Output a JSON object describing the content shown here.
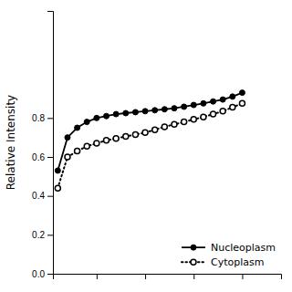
{
  "chart_data": {
    "type": "line",
    "y_label": "Relative Intensity",
    "x": [
      1,
      2,
      3,
      4,
      5,
      6,
      7,
      8,
      9,
      10,
      11,
      12,
      13,
      14,
      15,
      16,
      17,
      18,
      19,
      20
    ],
    "series": [
      {
        "name": "Nucleoplasm",
        "color": "#000000",
        "marker": "circle",
        "line_style": "solid",
        "values": [
          0.53,
          0.7,
          0.75,
          0.78,
          0.8,
          0.81,
          0.82,
          0.825,
          0.83,
          0.835,
          0.84,
          0.845,
          0.85,
          0.858,
          0.867,
          0.875,
          0.885,
          0.895,
          0.91,
          0.93
        ]
      },
      {
        "name": "Cytoplasm",
        "color": "#000000",
        "marker": "open-circle",
        "line_style": "dotted",
        "values": [
          0.44,
          0.6,
          0.63,
          0.655,
          0.67,
          0.685,
          0.695,
          0.705,
          0.715,
          0.725,
          0.74,
          0.755,
          0.767,
          0.78,
          0.793,
          0.805,
          0.82,
          0.835,
          0.855,
          0.875
        ]
      }
    ],
    "xlim": [
      0.5,
      24
    ],
    "xticks": [
      5,
      10,
      15,
      20
    ],
    "ylim": [
      0.0,
      1.35
    ],
    "yticks": [
      {
        "value": 0.0,
        "label": "0.0"
      },
      0.2,
      0.4,
      0.6,
      0.8
    ],
    "tick_labels": "y",
    "grid": false,
    "legend": "lower right"
  }
}
